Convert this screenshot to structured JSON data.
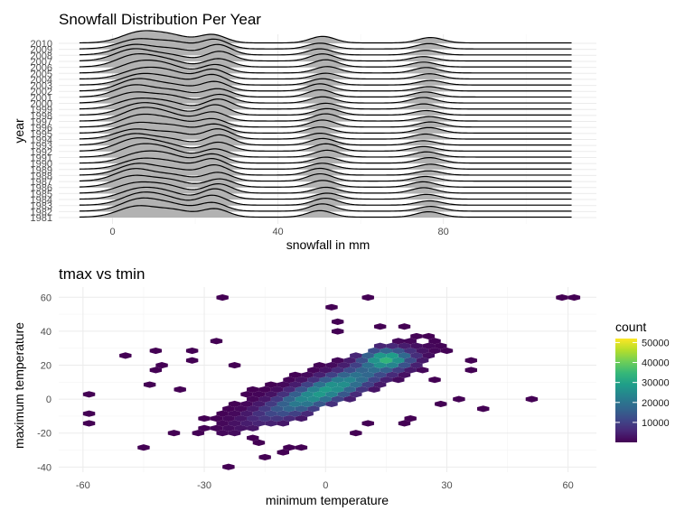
{
  "chart_data": [
    {
      "type": "ridgeline",
      "title": "Snowfall Distribution Per Year",
      "xlabel": "snowfall in mm",
      "ylabel": "year",
      "xlim": [
        -13,
        117
      ],
      "x_ticks": [
        0,
        40,
        80
      ],
      "x_tick_labels": [
        "0",
        "40",
        "80"
      ],
      "density_x_range": [
        -8,
        111
      ],
      "fill_color": "#b2b2b2",
      "line_color": "#000000",
      "series": [
        {
          "year": "1981"
        },
        {
          "year": "1982"
        },
        {
          "year": "1983"
        },
        {
          "year": "1984"
        },
        {
          "year": "1985"
        },
        {
          "year": "1986"
        },
        {
          "year": "1987"
        },
        {
          "year": "1988"
        },
        {
          "year": "1989"
        },
        {
          "year": "1990"
        },
        {
          "year": "1991"
        },
        {
          "year": "1992"
        },
        {
          "year": "1993"
        },
        {
          "year": "1994"
        },
        {
          "year": "1995"
        },
        {
          "year": "1996"
        },
        {
          "year": "1997"
        },
        {
          "year": "1998"
        },
        {
          "year": "1999"
        },
        {
          "year": "2000"
        },
        {
          "year": "2001"
        },
        {
          "year": "2002"
        },
        {
          "year": "2003"
        },
        {
          "year": "2004"
        },
        {
          "year": "2005"
        },
        {
          "year": "2006"
        },
        {
          "year": "2007"
        },
        {
          "year": "2008"
        },
        {
          "year": "2009"
        },
        {
          "year": "2010"
        }
      ],
      "density_peaks": [
        {
          "x": 6,
          "sd": 4.5,
          "weight": 1.0
        },
        {
          "x": 14,
          "sd": 4,
          "weight": 0.55
        },
        {
          "x": 25,
          "sd": 3.2,
          "weight": 0.85
        },
        {
          "x": 51,
          "sd": 3,
          "weight": 0.6
        },
        {
          "x": 76,
          "sd": 3,
          "weight": 0.45
        }
      ]
    },
    {
      "type": "hexbin",
      "title": "tmax vs tmin",
      "xlabel": "minimum temperature",
      "ylabel": "maximum temperature",
      "xlim": [
        -66,
        67
      ],
      "ylim": [
        -43,
        66
      ],
      "x_ticks": [
        -60,
        -30,
        0,
        30,
        60
      ],
      "x_tick_labels": [
        "-60",
        "-30",
        "0",
        "30",
        "60"
      ],
      "y_ticks": [
        -40,
        -20,
        0,
        20,
        40,
        60
      ],
      "y_tick_labels": [
        "-40",
        "-20",
        "0",
        "20",
        "40",
        "60"
      ],
      "hex_width": 3.0,
      "hex_height": 3.8,
      "legend": {
        "title": "count",
        "position": "right",
        "range": [
          1,
          52000
        ],
        "ticks": [
          10000,
          20000,
          30000,
          40000,
          50000
        ],
        "tick_labels": [
          "10000",
          "20000",
          "30000",
          "40000",
          "50000"
        ],
        "colors": [
          "#440154",
          "#482878",
          "#3e4989",
          "#31688e",
          "#26828e",
          "#1f9e89",
          "#35b779",
          "#6ece58",
          "#b5de2b",
          "#fde725"
        ]
      },
      "core": {
        "center": [
          0,
          5
        ],
        "direction": [
          1,
          1.05
        ],
        "sd_major": 14,
        "sd_minor": 4,
        "peak": [
          15,
          24
        ],
        "max_count": 52000
      },
      "extent": {
        "center": [
          0,
          8
        ],
        "direction": [
          1,
          0.95
        ],
        "semi_major": 40,
        "semi_minor": 11
      },
      "outliers": [
        [
          -26,
          60
        ],
        [
          10,
          60
        ],
        [
          59,
          60
        ],
        [
          62,
          60
        ],
        [
          2,
          54
        ],
        [
          3,
          47
        ],
        [
          2,
          41
        ],
        [
          -49,
          26
        ],
        [
          -42,
          28
        ],
        [
          -26,
          33
        ],
        [
          -32,
          29
        ],
        [
          -42,
          20
        ],
        [
          -42,
          16
        ],
        [
          -45,
          9
        ],
        [
          -59,
          3
        ],
        [
          -59,
          -8
        ],
        [
          -59,
          -14
        ],
        [
          -46,
          -28
        ],
        [
          -25,
          -40
        ],
        [
          -14,
          -33
        ],
        [
          -11,
          -30
        ],
        [
          -8,
          -29
        ],
        [
          -19,
          -22
        ],
        [
          52,
          0
        ],
        [
          40,
          -5
        ],
        [
          28,
          11
        ],
        [
          37,
          18
        ],
        [
          37,
          23
        ],
        [
          14,
          42
        ],
        [
          19,
          42
        ],
        [
          24,
          38
        ],
        [
          -33,
          22
        ],
        [
          -37,
          -21
        ],
        [
          33,
          0
        ],
        [
          28,
          -3
        ],
        [
          22,
          -12
        ],
        [
          18,
          -13
        ],
        [
          -5,
          -29
        ],
        [
          6,
          -21
        ],
        [
          -17,
          -27
        ],
        [
          10,
          -15
        ],
        [
          -23,
          19
        ],
        [
          -36,
          5
        ]
      ]
    }
  ]
}
